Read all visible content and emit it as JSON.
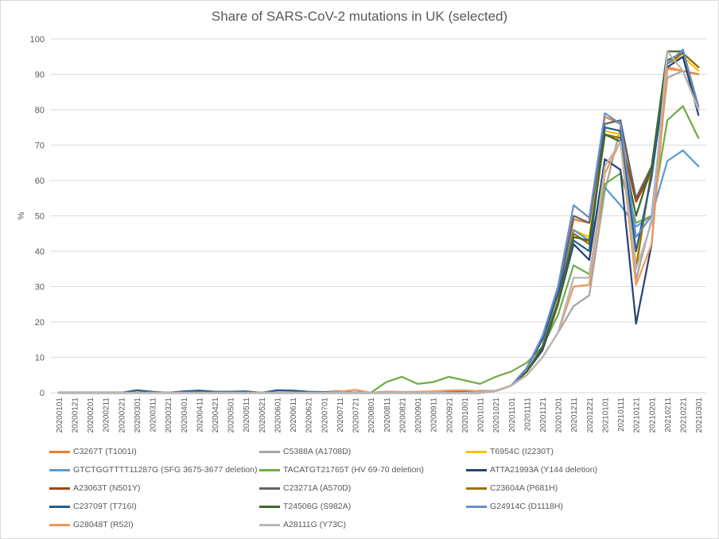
{
  "chart_data": {
    "type": "line",
    "title": "Share of SARS-CoV-2 mutations in UK (selected)",
    "xlabel": "",
    "ylabel": "%",
    "ylim": [
      0,
      100
    ],
    "yticks": [
      0,
      10,
      20,
      30,
      40,
      50,
      60,
      70,
      80,
      90,
      100
    ],
    "grid": true,
    "legend": "bottom",
    "categories": [
      "20200101",
      "20200121",
      "20200201",
      "20200211",
      "20200221",
      "20200301",
      "20200311",
      "20200321",
      "20200401",
      "20200411",
      "20200421",
      "20200501",
      "20200511",
      "20200521",
      "20200601",
      "20200611",
      "20200621",
      "20200701",
      "20200711",
      "20200721",
      "20200801",
      "20200811",
      "20200821",
      "20200901",
      "20200911",
      "20200921",
      "20201001",
      "20201011",
      "20201021",
      "20201101",
      "20201111",
      "20201121",
      "20201201",
      "20201211",
      "20201221",
      "20210101",
      "20210111",
      "20210121",
      "20210201",
      "20210211",
      "20210221",
      "20210301"
    ],
    "series": [
      {
        "name": "C3267T (T1001I)",
        "color": "#ED7D31",
        "values": [
          0,
          0,
          0,
          0,
          0,
          0,
          0,
          0,
          0,
          0,
          0,
          0,
          0,
          0,
          0,
          0,
          0,
          0,
          0,
          0,
          0,
          0,
          0,
          0,
          0,
          0,
          0,
          0,
          0.5,
          2,
          6,
          12,
          25,
          49,
          48,
          78,
          76,
          54,
          62,
          92,
          91,
          90
        ]
      },
      {
        "name": "C5388A (A1708D)",
        "color": "#A5A5A5",
        "values": [
          0,
          0,
          0,
          0,
          0,
          0,
          0,
          0,
          0,
          0,
          0,
          0,
          0,
          0,
          0,
          0,
          0,
          0,
          0,
          0,
          0,
          0,
          0,
          0,
          0,
          0,
          0,
          0,
          0.5,
          2,
          5,
          10,
          17,
          24.5,
          27.5,
          57,
          75,
          32,
          49,
          89,
          91,
          81
        ]
      },
      {
        "name": "T6954C (I2230T)",
        "color": "#FFC000",
        "values": [
          0,
          0,
          0,
          0,
          0,
          0,
          0,
          0,
          0,
          0,
          0,
          0,
          0,
          0,
          0,
          0,
          0,
          0,
          0,
          0,
          0,
          0,
          0,
          0,
          0,
          0,
          0,
          0,
          0.5,
          2,
          6,
          12,
          25,
          46,
          44,
          74,
          73,
          36,
          63,
          93,
          95,
          91
        ]
      },
      {
        "name": "GTCTGGTTTT11287G (SFG 3675-3677 deletion)",
        "color": "#5B9BD5",
        "values": [
          0,
          0,
          0,
          0,
          0,
          0,
          0,
          0,
          0,
          0,
          0,
          0,
          0,
          0,
          0,
          0,
          0,
          0,
          0,
          0,
          0,
          0,
          0,
          0,
          0,
          0,
          0,
          0,
          0.5,
          2,
          6,
          13,
          29,
          46,
          43,
          58,
          53,
          47,
          50,
          65.5,
          68.5,
          64
        ]
      },
      {
        "name": "TACATGT21765T (HV 69-70 deletion)",
        "color": "#70AD47",
        "values": [
          0,
          0,
          0,
          0,
          0,
          0,
          0,
          0,
          0,
          0,
          0,
          0,
          0,
          0,
          0,
          0,
          0,
          0,
          0,
          0,
          0,
          3,
          4.5,
          2.5,
          3,
          4.5,
          3.5,
          2.5,
          4.5,
          6,
          8.5,
          13,
          22,
          36,
          33.5,
          59,
          62,
          48,
          50,
          77,
          81,
          72
        ]
      },
      {
        "name": "ATTA21993A (Y144 deletion)",
        "color": "#264478",
        "values": [
          0,
          0,
          0,
          0,
          0,
          0,
          0,
          0,
          0,
          0,
          0,
          0,
          0,
          0,
          0,
          0,
          0,
          0,
          0,
          0,
          0,
          0,
          0,
          0,
          0,
          0,
          0,
          0,
          0.5,
          2,
          6,
          12,
          25,
          42,
          37.5,
          66,
          63,
          19.5,
          42,
          92,
          95,
          78.5
        ]
      },
      {
        "name": "A23063T (N501Y)",
        "color": "#9E480E",
        "values": [
          0,
          0,
          0,
          0,
          0,
          0,
          0,
          0,
          0,
          0,
          0,
          0,
          0,
          0,
          0,
          0,
          0,
          0,
          0,
          0,
          0,
          0,
          0,
          0,
          0,
          0,
          0,
          0,
          0.5,
          2,
          6,
          13,
          26,
          45,
          42,
          73,
          72,
          54,
          63,
          93,
          96,
          92
        ]
      },
      {
        "name": "C23271A (A570D)",
        "color": "#636363",
        "values": [
          0,
          0,
          0,
          0,
          0,
          0,
          0,
          0,
          0,
          0,
          0,
          0,
          0,
          0,
          0,
          0,
          0,
          0,
          0,
          0,
          0,
          0,
          0,
          0,
          0,
          0,
          0,
          0,
          0.5,
          2,
          7,
          16,
          28,
          50,
          48,
          76,
          77,
          55,
          64,
          94,
          96,
          92
        ]
      },
      {
        "name": "C23604A (P681H)",
        "color": "#997300",
        "values": [
          0,
          0,
          0,
          0,
          0,
          0,
          0,
          0,
          0,
          0,
          0,
          0,
          0,
          0,
          0,
          0,
          0,
          0,
          0,
          0,
          0,
          0,
          0,
          0,
          0,
          0,
          0,
          0,
          0.5,
          2,
          6,
          13,
          26,
          45,
          42,
          73,
          72,
          35,
          63,
          93,
          96,
          92
        ]
      },
      {
        "name": "C23709T (T716I)",
        "color": "#255E91",
        "values": [
          0,
          0,
          0,
          0,
          0,
          0.7,
          0.3,
          0,
          0.4,
          0.6,
          0.3,
          0.3,
          0.4,
          0,
          0.7,
          0.6,
          0.3,
          0.2,
          0.4,
          0,
          0,
          0.3,
          0.2,
          0.2,
          0.3,
          0.3,
          0.3,
          0.5,
          0.5,
          2,
          7,
          15,
          28,
          43,
          40,
          75,
          74,
          40,
          61,
          93,
          97,
          80
        ]
      },
      {
        "name": "T24506G (S982A)",
        "color": "#43682B",
        "values": [
          0,
          0,
          0,
          0,
          0,
          0,
          0,
          0,
          0,
          0,
          0,
          0,
          0,
          0,
          0,
          0,
          0,
          0,
          0,
          0,
          0,
          0,
          0,
          0,
          0,
          0,
          0,
          0,
          0.5,
          2,
          6,
          13,
          25,
          44,
          43,
          73,
          71,
          50,
          64,
          96.5,
          96.5,
          80
        ]
      },
      {
        "name": "G24914C (D1118H)",
        "color": "#698ED0",
        "values": [
          0,
          0,
          0,
          0,
          0,
          0,
          0,
          0,
          0,
          0,
          0,
          0,
          0,
          0,
          0,
          0,
          0,
          0,
          0,
          0,
          0,
          0,
          0,
          0,
          0,
          0,
          0,
          0,
          0.5,
          2,
          7,
          16,
          30,
          53,
          49.5,
          79,
          76,
          44,
          50,
          93,
          97,
          81
        ]
      },
      {
        "name": "G28048T (R52I)",
        "color": "#F1975A",
        "values": [
          0,
          0,
          0,
          0,
          0,
          0,
          0,
          0,
          0,
          0,
          0,
          0,
          0,
          0,
          0,
          0,
          0,
          0,
          0.3,
          0.8,
          0,
          0.3,
          0.2,
          0.3,
          0.4,
          0.6,
          0.7,
          0.4,
          0.6,
          2,
          5,
          10,
          17,
          30,
          30.5,
          62,
          71,
          30.5,
          42,
          91.5,
          91,
          80
        ]
      },
      {
        "name": "A28111G (Y73C)",
        "color": "#B7B7B7",
        "values": [
          0,
          0,
          0,
          0,
          0,
          0,
          0,
          0,
          0,
          0,
          0,
          0,
          0,
          0,
          0,
          0,
          0,
          0,
          0,
          0,
          0,
          0,
          0,
          0,
          0,
          0,
          0,
          0,
          0.5,
          2,
          5,
          10,
          17,
          32.5,
          32.5,
          64,
          71,
          35,
          48,
          96.5,
          91,
          80
        ]
      }
    ]
  }
}
